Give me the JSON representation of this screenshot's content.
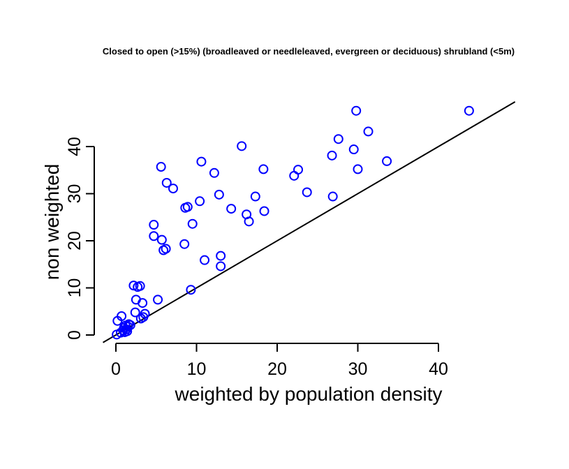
{
  "chart_data": {
    "type": "scatter",
    "title": "Closed to open (>15%) (broadleaved or needleleaved, evergreen or deciduous) shrubland (<5m)",
    "xlabel": "weighted by population density",
    "ylabel": "non weighted",
    "xlim": [
      -1.6,
      50
    ],
    "ylim": [
      -1.7,
      50
    ],
    "x_ticks": [
      "0",
      "10",
      "20",
      "30",
      "40"
    ],
    "y_ticks": [
      "0",
      "10",
      "20",
      "30",
      "40"
    ],
    "grid": false,
    "legend": "none",
    "point_color": "#0000ff",
    "reference_line": {
      "slope": 1,
      "intercept": 0
    },
    "points": [
      [
        0.1,
        0.1
      ],
      [
        0.2,
        3.0
      ],
      [
        0.6,
        0.5
      ],
      [
        0.7,
        4.0
      ],
      [
        0.9,
        1.0
      ],
      [
        1.0,
        1.5
      ],
      [
        1.1,
        0.6
      ],
      [
        1.2,
        2.0
      ],
      [
        1.3,
        1.2
      ],
      [
        1.4,
        0.8
      ],
      [
        1.5,
        1.8
      ],
      [
        1.6,
        2.3
      ],
      [
        1.8,
        2.1
      ],
      [
        2.2,
        10.5
      ],
      [
        2.4,
        4.8
      ],
      [
        2.5,
        7.5
      ],
      [
        2.7,
        10.2
      ],
      [
        3.0,
        10.4
      ],
      [
        3.1,
        3.5
      ],
      [
        3.3,
        6.8
      ],
      [
        3.4,
        3.8
      ],
      [
        3.6,
        4.5
      ],
      [
        5.2,
        7.5
      ],
      [
        4.7,
        23.4
      ],
      [
        4.7,
        21.0
      ],
      [
        5.6,
        35.7
      ],
      [
        5.7,
        20.2
      ],
      [
        5.9,
        18.0
      ],
      [
        6.2,
        18.3
      ],
      [
        6.3,
        32.3
      ],
      [
        7.1,
        31.1
      ],
      [
        8.5,
        19.3
      ],
      [
        8.6,
        27.0
      ],
      [
        8.9,
        27.2
      ],
      [
        9.3,
        9.6
      ],
      [
        9.5,
        23.6
      ],
      [
        10.4,
        28.4
      ],
      [
        10.6,
        36.8
      ],
      [
        11.0,
        15.9
      ],
      [
        12.2,
        34.4
      ],
      [
        12.8,
        29.8
      ],
      [
        13.0,
        16.8
      ],
      [
        13.0,
        14.6
      ],
      [
        14.3,
        26.8
      ],
      [
        15.6,
        40.1
      ],
      [
        16.2,
        25.6
      ],
      [
        16.5,
        24.1
      ],
      [
        17.3,
        29.4
      ],
      [
        18.3,
        35.2
      ],
      [
        18.4,
        26.3
      ],
      [
        22.1,
        33.8
      ],
      [
        22.6,
        35.1
      ],
      [
        23.7,
        30.3
      ],
      [
        26.8,
        38.1
      ],
      [
        26.9,
        29.4
      ],
      [
        27.6,
        41.6
      ],
      [
        29.5,
        39.4
      ],
      [
        29.8,
        47.6
      ],
      [
        30.0,
        35.2
      ],
      [
        31.3,
        43.2
      ],
      [
        33.6,
        36.9
      ],
      [
        43.8,
        47.6
      ]
    ]
  }
}
